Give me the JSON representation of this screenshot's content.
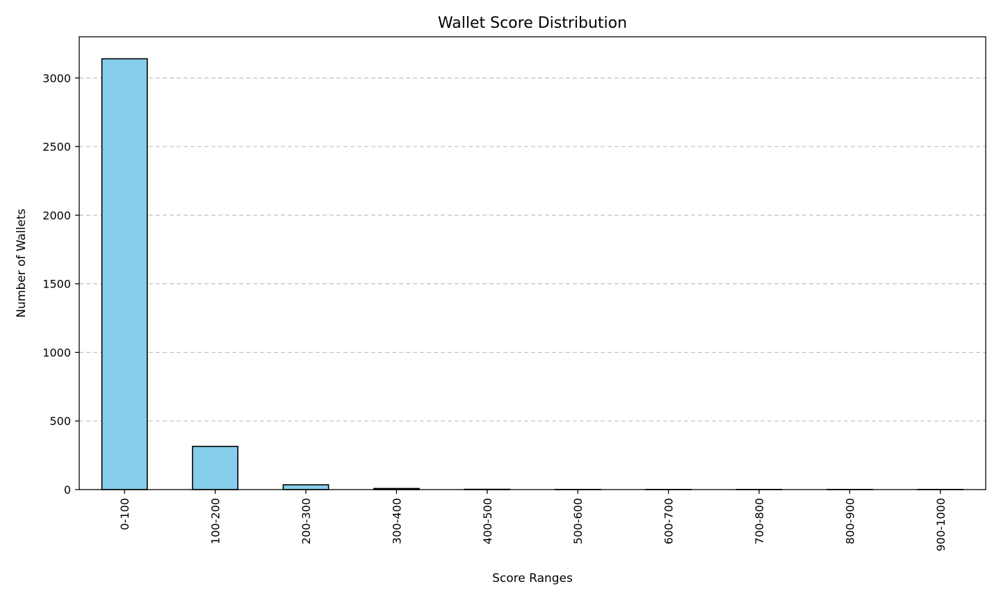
{
  "chart_data": {
    "type": "bar",
    "title": "Wallet Score Distribution",
    "xlabel": "Score Ranges",
    "ylabel": "Number of Wallets",
    "categories": [
      "0-100",
      "100-200",
      "200-300",
      "300-400",
      "400-500",
      "500-600",
      "600-700",
      "700-800",
      "800-900",
      "900-1000"
    ],
    "values": [
      3140,
      315,
      35,
      8,
      2,
      1,
      1,
      1,
      1,
      1
    ],
    "ylim": [
      0,
      3300
    ],
    "yticks": [
      0,
      500,
      1000,
      1500,
      2000,
      2500,
      3000
    ],
    "grid": "y-dashed",
    "legend": "none",
    "bar_color": "#87ceeb",
    "edge_color": "#000000",
    "grid_color": "#b0b0b0"
  }
}
